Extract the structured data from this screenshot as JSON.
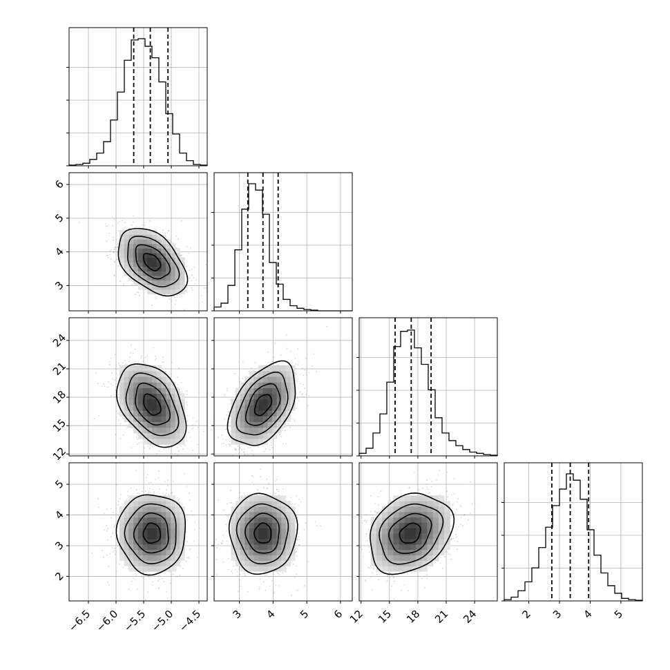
{
  "chart_data": {
    "type": "corner",
    "grid": true,
    "parameters": [
      {
        "range": [
          -6.85,
          -4.35
        ],
        "ticks": [
          -6.5,
          -6.0,
          -5.5,
          -5.0,
          -4.5
        ],
        "tick_labels": [
          "−6.5",
          "−6.0",
          "−5.5",
          "−5.0",
          "−4.5"
        ]
      },
      {
        "range": [
          2.25,
          6.35
        ],
        "ticks": [
          3,
          4,
          5,
          6
        ],
        "tick_labels": [
          "3",
          "4",
          "5",
          "6"
        ]
      },
      {
        "range": [
          11.8,
          26.4
        ],
        "ticks": [
          12,
          15,
          18,
          21,
          24
        ],
        "tick_labels": [
          "12",
          "15",
          "18",
          "21",
          "24"
        ]
      },
      {
        "range": [
          1.2,
          5.7
        ],
        "ticks": [
          2,
          3,
          4,
          5
        ],
        "tick_labels": [
          "2",
          "3",
          "4",
          "5"
        ]
      }
    ],
    "quantiles": [
      [
        -5.68,
        -5.38,
        -5.06
      ],
      [
        3.25,
        3.7,
        4.15
      ],
      [
        15.6,
        17.3,
        19.4
      ],
      [
        2.75,
        3.35,
        3.95
      ]
    ],
    "histograms": [
      {
        "bins": [
          -6.85,
          -6.725,
          -6.6,
          -6.475,
          -6.35,
          -6.225,
          -6.1,
          -5.975,
          -5.85,
          -5.725,
          -5.6,
          -5.475,
          -5.35,
          -5.225,
          -5.1,
          -4.975,
          -4.85,
          -4.725,
          -4.6,
          -4.475,
          -4.35
        ],
        "counts": [
          0.005,
          0.01,
          0.02,
          0.05,
          0.1,
          0.19,
          0.36,
          0.58,
          0.83,
          0.99,
          1.0,
          0.94,
          0.85,
          0.66,
          0.41,
          0.25,
          0.1,
          0.04,
          0.01,
          0.005
        ]
      },
      {
        "bins": [
          2.25,
          2.455,
          2.66,
          2.865,
          3.07,
          3.275,
          3.48,
          3.685,
          3.89,
          4.095,
          4.3,
          4.505,
          4.71,
          4.915,
          5.12,
          5.325,
          5.53,
          5.735,
          5.94,
          6.145,
          6.35
        ],
        "counts": [
          0.03,
          0.06,
          0.2,
          0.48,
          0.8,
          1.0,
          0.95,
          0.76,
          0.38,
          0.21,
          0.09,
          0.04,
          0.02,
          0.01,
          0.005,
          0.0,
          0.0,
          0.0,
          0.0,
          0.0
        ]
      },
      {
        "bins": [
          11.8,
          12.53,
          13.26,
          13.99,
          14.72,
          15.45,
          16.18,
          16.91,
          17.64,
          18.37,
          19.1,
          19.83,
          20.56,
          21.29,
          22.02,
          22.75,
          23.48,
          24.21,
          24.94,
          25.67,
          26.4
        ],
        "counts": [
          0.02,
          0.06,
          0.18,
          0.33,
          0.58,
          0.86,
          0.98,
          0.99,
          0.85,
          0.72,
          0.52,
          0.3,
          0.18,
          0.12,
          0.08,
          0.05,
          0.03,
          0.02,
          0.01,
          0.005
        ]
      },
      {
        "bins": [
          1.2,
          1.425,
          1.65,
          1.875,
          2.1,
          2.325,
          2.55,
          2.775,
          3.0,
          3.225,
          3.45,
          3.675,
          3.9,
          4.125,
          4.35,
          4.575,
          4.8,
          5.025,
          5.25,
          5.475,
          5.7
        ],
        "counts": [
          0.01,
          0.03,
          0.08,
          0.15,
          0.26,
          0.42,
          0.58,
          0.75,
          0.88,
          1.0,
          0.95,
          0.8,
          0.56,
          0.36,
          0.22,
          0.12,
          0.06,
          0.02,
          0.01,
          0.005
        ]
      }
    ],
    "pairs": [
      {
        "x": 0,
        "y": 1,
        "mean": [
          -5.35,
          3.7
        ],
        "sd": [
          0.31,
          0.5
        ],
        "corr": -0.45
      },
      {
        "x": 0,
        "y": 2,
        "mean": [
          -5.35,
          17.2
        ],
        "sd": [
          0.31,
          2.2
        ],
        "corr": -0.4
      },
      {
        "x": 1,
        "y": 2,
        "mean": [
          3.7,
          17.2
        ],
        "sd": [
          0.5,
          2.2
        ],
        "corr": 0.45
      },
      {
        "x": 0,
        "y": 3,
        "mean": [
          -5.35,
          3.4
        ],
        "sd": [
          0.31,
          0.65
        ],
        "corr": 0.0
      },
      {
        "x": 1,
        "y": 3,
        "mean": [
          3.7,
          3.4
        ],
        "sd": [
          0.5,
          0.65
        ],
        "corr": 0.0
      },
      {
        "x": 2,
        "y": 3,
        "mean": [
          17.2,
          3.4
        ],
        "sd": [
          2.2,
          0.65
        ],
        "corr": 0.25
      }
    ],
    "contour_levels_sigma": [
      0.5,
      1.0,
      1.5,
      2.0
    ]
  }
}
